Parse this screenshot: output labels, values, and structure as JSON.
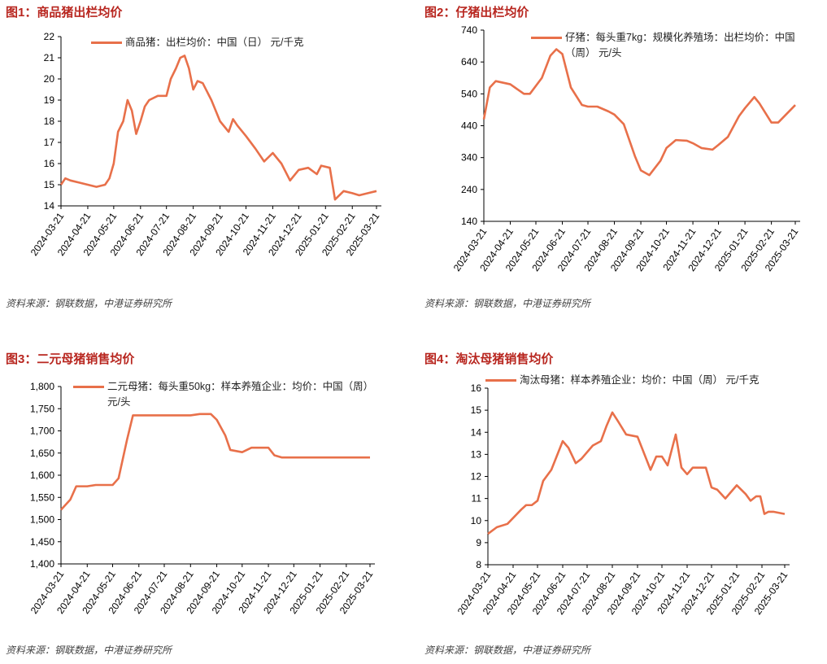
{
  "chart_data": [
    {
      "type": "line",
      "title": "图1：商品猪出栏均价",
      "source": "资料来源：钢联数据，中港证券研究所",
      "x": [
        "2024-03-21",
        "2024-03-26",
        "2024-04-01",
        "2024-04-11",
        "2024-04-21",
        "2024-05-01",
        "2024-05-11",
        "2024-05-16",
        "2024-05-21",
        "2024-05-26",
        "2024-06-01",
        "2024-06-06",
        "2024-06-11",
        "2024-06-16",
        "2024-06-21",
        "2024-06-26",
        "2024-07-01",
        "2024-07-11",
        "2024-07-21",
        "2024-07-26",
        "2024-08-01",
        "2024-08-06",
        "2024-08-11",
        "2024-08-16",
        "2024-08-21",
        "2024-08-26",
        "2024-09-01",
        "2024-09-11",
        "2024-09-21",
        "2024-10-01",
        "2024-10-06",
        "2024-10-11",
        "2024-10-21",
        "2024-11-01",
        "2024-11-11",
        "2024-11-21",
        "2024-12-01",
        "2024-12-11",
        "2024-12-21",
        "2025-01-01",
        "2025-01-11",
        "2025-01-16",
        "2025-01-26",
        "2025-02-01",
        "2025-02-11",
        "2025-02-21",
        "2025-03-01",
        "2025-03-11",
        "2025-03-21"
      ],
      "series": [
        {
          "name": "商品猪：出栏均价：中国（日） 元/千克",
          "color": "#e8704a",
          "values": [
            15.0,
            15.3,
            15.2,
            15.1,
            15.0,
            14.9,
            15.0,
            15.3,
            16.0,
            17.5,
            18.0,
            19.0,
            18.5,
            17.4,
            18.0,
            18.7,
            19.0,
            19.2,
            19.2,
            20.0,
            20.5,
            21.0,
            21.1,
            20.5,
            19.5,
            19.9,
            19.8,
            19.0,
            18.0,
            17.5,
            18.1,
            17.8,
            17.3,
            16.7,
            16.1,
            16.5,
            16.0,
            15.2,
            15.7,
            15.8,
            15.5,
            15.9,
            15.8,
            14.3,
            14.7,
            14.6,
            14.5,
            14.6,
            14.7
          ]
        }
      ],
      "xlim": [
        "2024-03-21",
        "2025-03-21"
      ],
      "xticks": [
        "2024-03-21",
        "2024-04-21",
        "2024-05-21",
        "2024-06-21",
        "2024-07-21",
        "2024-08-21",
        "2024-09-21",
        "2024-10-21",
        "2024-11-21",
        "2024-12-21",
        "2025-01-21",
        "2025-02-21",
        "2025-03-21"
      ],
      "ylim": [
        14,
        22
      ],
      "yticks": [
        14,
        15,
        16,
        17,
        18,
        19,
        20,
        21,
        22
      ]
    },
    {
      "type": "line",
      "title": "图2：仔猪出栏均价",
      "source": "资料来源：钢联数据，中港证券研究所",
      "x": [
        "2024-03-21",
        "2024-03-28",
        "2024-04-04",
        "2024-04-21",
        "2024-05-07",
        "2024-05-14",
        "2024-05-28",
        "2024-06-07",
        "2024-06-14",
        "2024-06-21",
        "2024-07-01",
        "2024-07-14",
        "2024-07-21",
        "2024-08-01",
        "2024-08-14",
        "2024-08-21",
        "2024-09-01",
        "2024-09-14",
        "2024-09-21",
        "2024-10-01",
        "2024-10-14",
        "2024-10-21",
        "2024-11-01",
        "2024-11-14",
        "2024-11-21",
        "2024-12-01",
        "2024-12-14",
        "2024-12-21",
        "2025-01-01",
        "2025-01-14",
        "2025-01-21",
        "2025-02-01",
        "2025-02-07",
        "2025-02-21",
        "2025-03-01",
        "2025-03-21"
      ],
      "series": [
        {
          "name": "仔猪：每头重7kg：规模化养殖场：出栏均价：中国（周） 元/头",
          "color": "#e8704a",
          "values": [
            460,
            560,
            580,
            570,
            540,
            540,
            590,
            660,
            680,
            665,
            560,
            505,
            500,
            500,
            485,
            475,
            445,
            345,
            300,
            285,
            330,
            370,
            395,
            393,
            385,
            370,
            365,
            380,
            405,
            470,
            495,
            530,
            510,
            450,
            450,
            505
          ]
        }
      ],
      "xlim": [
        "2024-03-21",
        "2025-03-21"
      ],
      "xticks": [
        "2024-03-21",
        "2024-04-21",
        "2024-05-21",
        "2024-06-21",
        "2024-07-21",
        "2024-08-21",
        "2024-09-21",
        "2024-10-21",
        "2024-11-21",
        "2024-12-21",
        "2025-01-21",
        "2025-02-21",
        "2025-03-21"
      ],
      "ylim": [
        140,
        740
      ],
      "yticks": [
        140,
        240,
        340,
        440,
        540,
        640,
        740
      ]
    },
    {
      "type": "line",
      "title": "图3：二元母猪销售均价",
      "source": "资料来源：钢联数据，中港证券研究所",
      "x": [
        "2024-03-21",
        "2024-04-01",
        "2024-04-08",
        "2024-04-21",
        "2024-05-01",
        "2024-05-21",
        "2024-05-28",
        "2024-06-07",
        "2024-06-14",
        "2024-07-21",
        "2024-08-21",
        "2024-09-01",
        "2024-09-14",
        "2024-09-21",
        "2024-10-01",
        "2024-10-07",
        "2024-10-21",
        "2024-11-01",
        "2024-11-21",
        "2024-11-28",
        "2024-12-07",
        "2025-03-21"
      ],
      "series": [
        {
          "name": "二元母猪：每头重50kg：样本养殖企业：均价：中国（周） 元/头",
          "color": "#e8704a",
          "values": [
            1522,
            1545,
            1575,
            1575,
            1578,
            1578,
            1593,
            1680,
            1735,
            1735,
            1735,
            1738,
            1738,
            1725,
            1690,
            1657,
            1652,
            1662,
            1662,
            1645,
            1640,
            1640
          ]
        }
      ],
      "xlim": [
        "2024-03-21",
        "2025-03-21"
      ],
      "xticks": [
        "2024-03-21",
        "2024-04-21",
        "2024-05-21",
        "2024-06-21",
        "2024-07-21",
        "2024-08-21",
        "2024-09-21",
        "2024-10-21",
        "2024-11-21",
        "2024-12-21",
        "2025-01-21",
        "2025-02-21",
        "2025-03-21"
      ],
      "ylim": [
        1400,
        1800
      ],
      "yticks": [
        {
          "value": 1400,
          "label": "1,400"
        },
        {
          "value": 1450,
          "label": "1,450"
        },
        {
          "value": 1500,
          "label": "1,500"
        },
        {
          "value": 1550,
          "label": "1,550"
        },
        {
          "value": 1600,
          "label": "1,600"
        },
        {
          "value": 1650,
          "label": "1,650"
        },
        {
          "value": 1700,
          "label": "1,700"
        },
        {
          "value": 1750,
          "label": "1,750"
        },
        {
          "value": 1800,
          "label": "1,800"
        }
      ]
    },
    {
      "type": "line",
      "title": "图4：淘汰母猪销售均价",
      "source": "资料来源：钢联数据，中港证券研究所",
      "x": [
        "2024-03-21",
        "2024-04-01",
        "2024-04-14",
        "2024-05-01",
        "2024-05-07",
        "2024-05-14",
        "2024-05-21",
        "2024-05-28",
        "2024-06-07",
        "2024-06-21",
        "2024-06-28",
        "2024-07-07",
        "2024-07-14",
        "2024-07-28",
        "2024-08-07",
        "2024-08-14",
        "2024-08-21",
        "2024-08-28",
        "2024-09-07",
        "2024-09-21",
        "2024-10-07",
        "2024-10-14",
        "2024-10-21",
        "2024-10-28",
        "2024-11-07",
        "2024-11-14",
        "2024-11-21",
        "2024-11-28",
        "2024-12-14",
        "2024-12-21",
        "2024-12-28",
        "2025-01-07",
        "2025-01-21",
        "2025-02-01",
        "2025-02-07",
        "2025-02-14",
        "2025-02-19",
        "2025-02-24",
        "2025-03-01",
        "2025-03-07",
        "2025-03-21"
      ],
      "series": [
        {
          "name": "淘汰母猪：样本养殖企业：均价：中国（周） 元/千克",
          "color": "#e8704a",
          "values": [
            9.4,
            9.7,
            9.85,
            10.5,
            10.7,
            10.7,
            10.9,
            11.8,
            12.3,
            13.6,
            13.3,
            12.6,
            12.8,
            13.4,
            13.6,
            14.3,
            14.9,
            14.5,
            13.9,
            13.8,
            12.3,
            12.9,
            12.9,
            12.5,
            13.9,
            12.4,
            12.1,
            12.4,
            12.4,
            11.5,
            11.4,
            11.0,
            11.6,
            11.2,
            10.9,
            11.1,
            11.1,
            10.3,
            10.4,
            10.4,
            10.3
          ]
        }
      ],
      "xlim": [
        "2024-03-21",
        "2025-03-21"
      ],
      "xticks": [
        "2024-03-21",
        "2024-04-21",
        "2024-05-21",
        "2024-06-21",
        "2024-07-21",
        "2024-08-21",
        "2024-09-21",
        "2024-10-21",
        "2024-11-21",
        "2024-12-21",
        "2025-01-21",
        "2025-02-21",
        "2025-03-21"
      ],
      "ylim": [
        8,
        16
      ],
      "yticks": [
        8,
        9,
        10,
        11,
        12,
        13,
        14,
        15,
        16
      ]
    }
  ]
}
